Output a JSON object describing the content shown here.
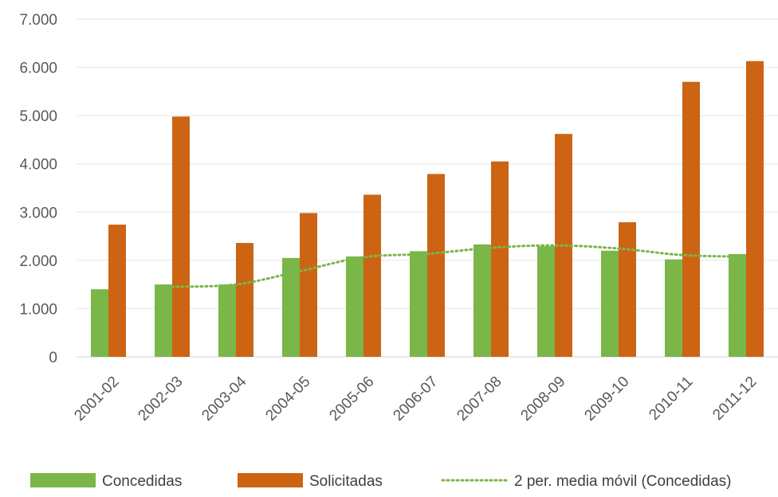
{
  "chart_data": {
    "type": "bar",
    "title": "",
    "xlabel": "",
    "ylabel": "",
    "ylim": [
      0,
      7000
    ],
    "y_ticks": [
      0,
      1000,
      2000,
      3000,
      4000,
      5000,
      6000,
      7000
    ],
    "y_tick_labels": [
      "0",
      "1.000",
      "2.000",
      "3.000",
      "4.000",
      "5.000",
      "6.000",
      "7.000"
    ],
    "grid": "horizontal",
    "legend_position": "bottom",
    "categories": [
      "2001-02",
      "2002-03",
      "2003-04",
      "2004-05",
      "2005-06",
      "2006-07",
      "2007-08",
      "2008-09",
      "2009-10",
      "2010-11",
      "2011-12"
    ],
    "series": [
      {
        "name": "Concedidas",
        "kind": "bar",
        "color": "#7ab648",
        "values": [
          1400,
          1500,
          1500,
          2050,
          2080,
          2190,
          2330,
          2290,
          2200,
          2020,
          2130
        ]
      },
      {
        "name": "Solicitadas",
        "kind": "bar",
        "color": "#cc6414",
        "values": [
          2740,
          4980,
          2360,
          2980,
          3360,
          3790,
          4050,
          4620,
          2790,
          5700,
          6130
        ]
      },
      {
        "name": "2 per. media móvil (Concedidas)",
        "kind": "line",
        "style": "dotted",
        "color": "#7ab648",
        "values": [
          null,
          1450,
          1500,
          1775,
          2065,
          2135,
          2260,
          2310,
          2245,
          2110,
          2075
        ]
      }
    ]
  }
}
